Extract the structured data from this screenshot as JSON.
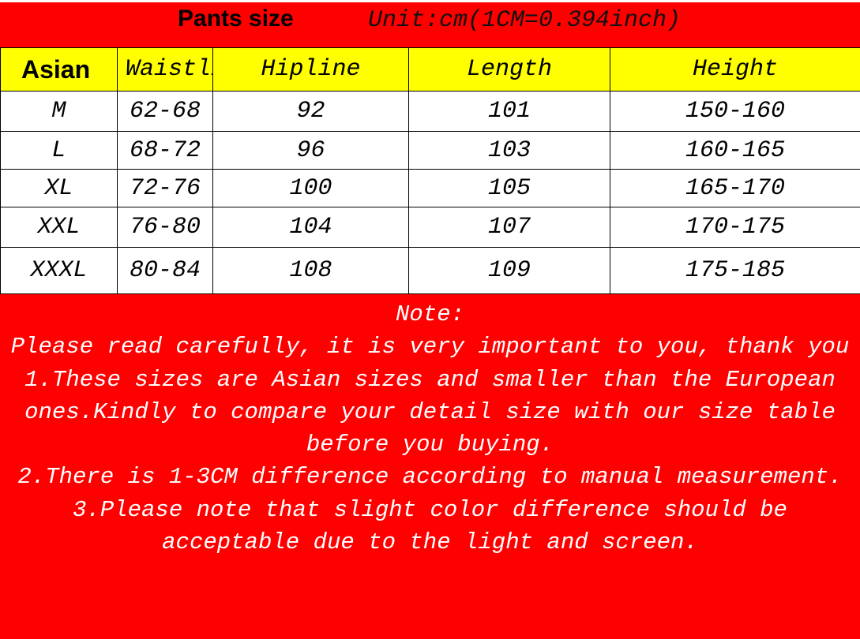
{
  "header": {
    "title": "Pants size",
    "unit": "Unit:cm(1CM=0.394inch)"
  },
  "table": {
    "columns": [
      "Asian",
      "Waistline",
      "Hipline",
      "Length",
      "Height"
    ],
    "rows": [
      [
        "M",
        "62-68",
        "92",
        "101",
        "150-160"
      ],
      [
        "L",
        "68-72",
        "96",
        "103",
        "160-165"
      ],
      [
        "XL",
        "72-76",
        "100",
        "105",
        "165-170"
      ],
      [
        "XXL",
        "76-80",
        "104",
        "107",
        "170-175"
      ],
      [
        "XXXL",
        "80-84",
        "108",
        "109",
        "175-185"
      ]
    ]
  },
  "note": {
    "title": "Note:",
    "lines": [
      "Please read carefully, it is very important to you, thank you",
      "1.These sizes are Asian sizes and smaller than the European ones.Kindly to compare your detail size with our size table before you buying.",
      "2.There is 1-3CM difference according to manual measurement.",
      "3.Please note that slight color difference should be acceptable due to the light and screen."
    ]
  }
}
